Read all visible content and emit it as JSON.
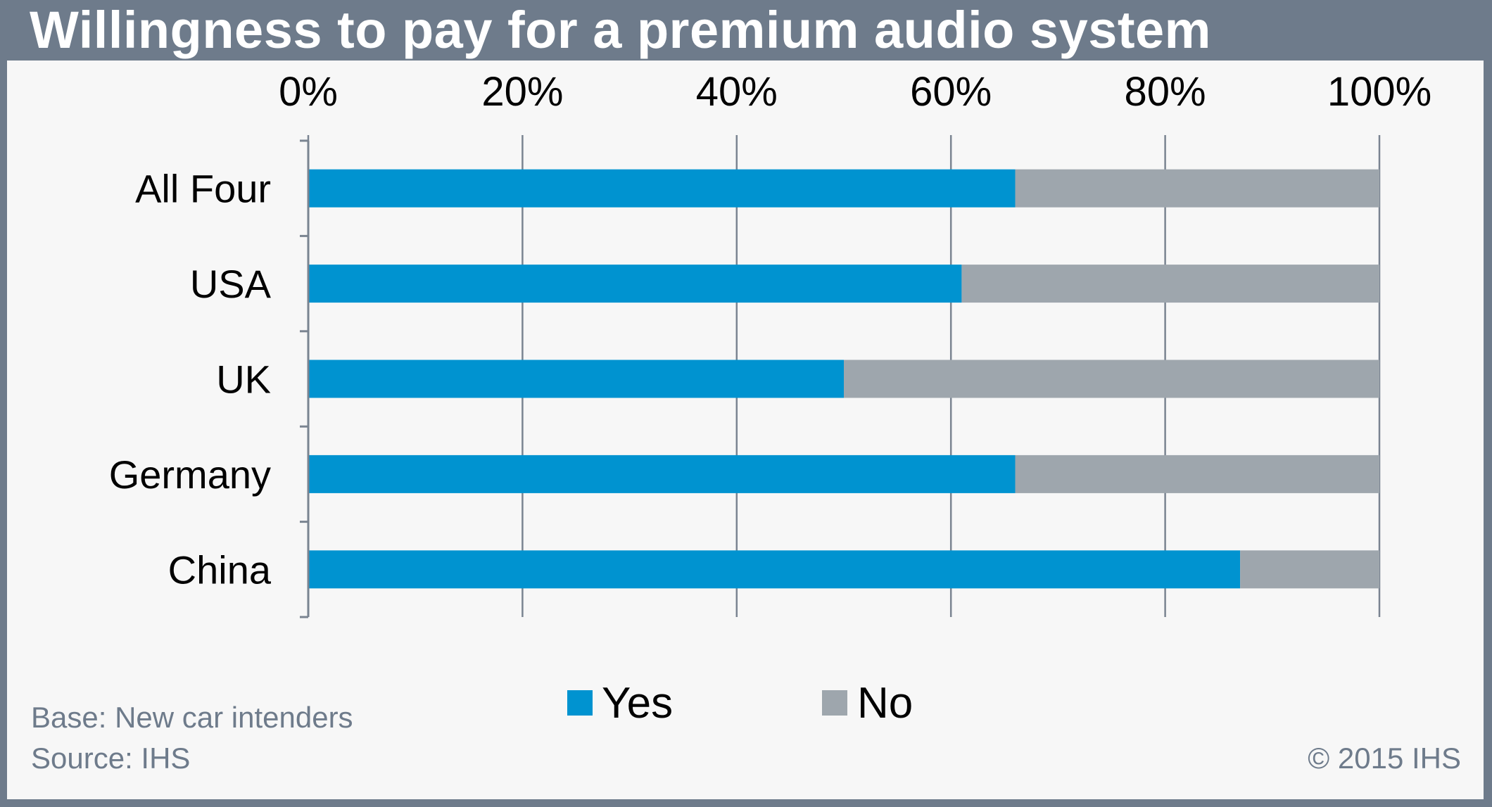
{
  "chart_data": {
    "type": "bar",
    "orientation": "horizontal",
    "stacked": true,
    "title": "Willingness to pay for a premium audio system",
    "categories": [
      "All Four",
      "USA",
      "UK",
      "Germany",
      "China"
    ],
    "series": [
      {
        "name": "Yes",
        "color": "#0093d0",
        "values": [
          66,
          61,
          50,
          66,
          87
        ]
      },
      {
        "name": "No",
        "color": "#9ea6ad",
        "values": [
          34,
          39,
          50,
          34,
          13
        ]
      }
    ],
    "x_ticks": [
      "0%",
      "20%",
      "40%",
      "60%",
      "80%",
      "100%"
    ],
    "xlim": [
      0,
      100
    ],
    "grid": "vertical",
    "legend_position": "bottom"
  },
  "footnotes": {
    "base": "Base: New car intenders",
    "source": "Source: IHS",
    "copyright": "© 2015 IHS"
  }
}
